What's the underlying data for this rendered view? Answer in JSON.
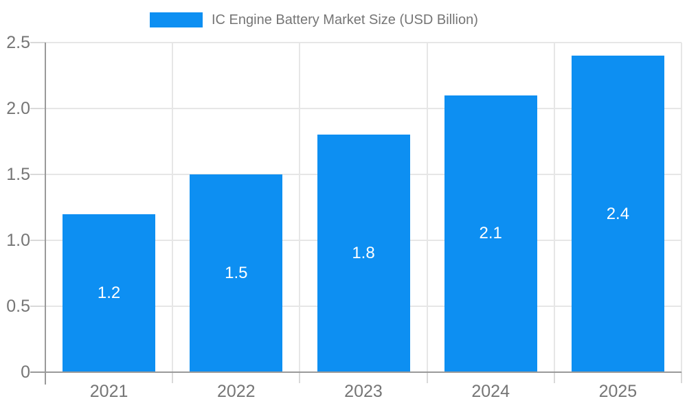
{
  "chart_data": {
    "type": "bar",
    "title": "IC Engine Battery Market Size (USD Billion)",
    "categories": [
      "2021",
      "2022",
      "2023",
      "2024",
      "2025"
    ],
    "values": [
      1.2,
      1.5,
      1.8,
      2.1,
      2.4
    ],
    "value_labels": [
      "1.2",
      "1.5",
      "1.8",
      "2.1",
      "2.4"
    ],
    "xlabel": "",
    "ylabel": "",
    "ylim": [
      0,
      2.5
    ],
    "ytick_step": 0.5,
    "ytick_labels": [
      "0",
      "0.5",
      "1.0",
      "1.5",
      "2.0",
      "2.5"
    ],
    "grid": true,
    "legend_position": "top-center",
    "legend_entries": [
      "IC Engine Battery Market Size (USD Billion)"
    ]
  },
  "colors": {
    "bar": "#0d8ff2",
    "axis_line": "#999999",
    "gridline": "#e6e6e6",
    "tick_mark": "#d9d9d9",
    "label_text": "#757575",
    "value_label_text": "#ffffff",
    "background": "#ffffff"
  }
}
